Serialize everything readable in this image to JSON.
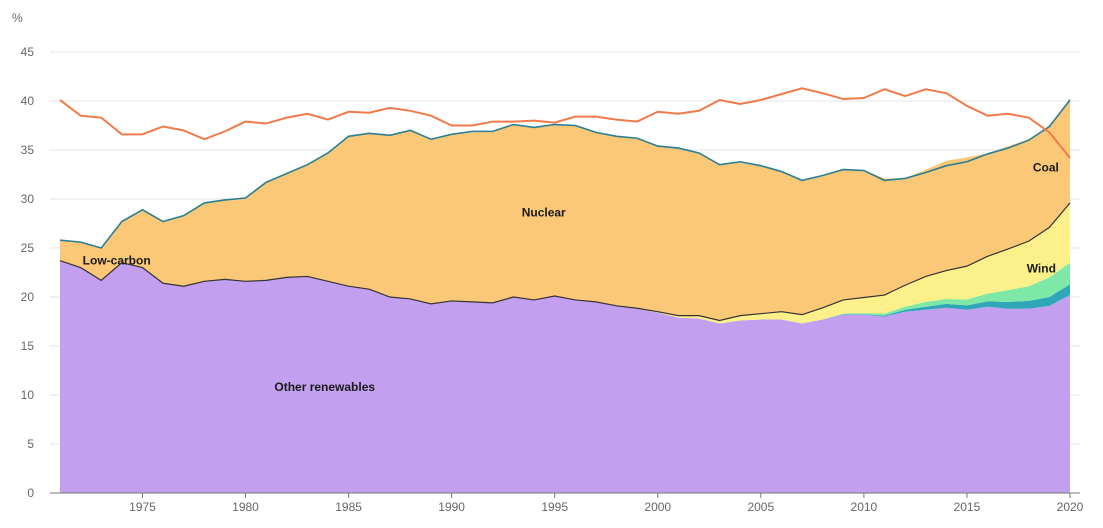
{
  "chart_data": {
    "type": "area",
    "y_unit": "%",
    "ylim": [
      0,
      45
    ],
    "y_ticks": [
      0,
      5,
      10,
      15,
      20,
      25,
      30,
      35,
      40,
      45
    ],
    "x_ticks": [
      1975,
      1980,
      1985,
      1990,
      1995,
      2000,
      2005,
      2010,
      2015,
      2020
    ],
    "xlim": [
      1971,
      2020
    ],
    "grid": true,
    "x": [
      1971,
      1972,
      1973,
      1974,
      1975,
      1976,
      1977,
      1978,
      1979,
      1980,
      1981,
      1982,
      1983,
      1984,
      1985,
      1986,
      1987,
      1988,
      1989,
      1990,
      1991,
      1992,
      1993,
      1994,
      1995,
      1996,
      1997,
      1998,
      1999,
      2000,
      2001,
      2002,
      2003,
      2004,
      2005,
      2006,
      2007,
      2008,
      2009,
      2010,
      2011,
      2012,
      2013,
      2014,
      2015,
      2016,
      2017,
      2018,
      2019,
      2020
    ],
    "series": [
      {
        "key": "other_renewables",
        "color": "#c39ff0",
        "values": [
          23.7,
          23.0,
          21.7,
          23.5,
          23.0,
          21.4,
          21.1,
          21.6,
          21.8,
          21.6,
          21.7,
          22.0,
          22.1,
          21.6,
          21.1,
          20.8,
          20.0,
          19.8,
          19.3,
          19.6,
          19.5,
          19.4,
          20.0,
          19.7,
          20.1,
          19.7,
          19.5,
          19.1,
          18.8,
          18.4,
          17.9,
          17.8,
          17.3,
          17.6,
          17.7,
          17.7,
          17.3,
          17.7,
          18.2,
          18.2,
          18.0,
          18.5,
          18.7,
          18.9,
          18.7,
          19.0,
          18.8,
          18.8,
          19.1,
          20.2
        ]
      },
      {
        "key": "solar",
        "color": "#2fa7b8",
        "values": [
          0,
          0,
          0,
          0,
          0,
          0,
          0,
          0,
          0,
          0,
          0,
          0,
          0,
          0,
          0,
          0,
          0,
          0,
          0,
          0,
          0,
          0,
          0,
          0,
          0,
          0,
          0,
          0,
          0,
          0,
          0,
          0,
          0,
          0,
          0,
          0,
          0,
          0,
          0.05,
          0.05,
          0.1,
          0.2,
          0.3,
          0.4,
          0.45,
          0.55,
          0.7,
          0.8,
          0.9,
          1.1
        ]
      },
      {
        "key": "wind_green",
        "color": "#7ee8a6",
        "values": [
          0,
          0,
          0,
          0,
          0,
          0,
          0,
          0,
          0,
          0,
          0,
          0,
          0,
          0,
          0,
          0,
          0,
          0,
          0,
          0,
          0,
          0,
          0,
          0,
          0,
          0,
          0,
          0,
          0,
          0,
          0,
          0,
          0,
          0,
          0,
          0,
          0,
          0,
          0.05,
          0.1,
          0.2,
          0.3,
          0.5,
          0.5,
          0.6,
          0.8,
          1.2,
          1.5,
          2.0,
          2.2
        ]
      },
      {
        "key": "wind",
        "color": "#fbf08a",
        "values": [
          0,
          0,
          0,
          0,
          0,
          0,
          0,
          0,
          0,
          0,
          0,
          0,
          0,
          0,
          0,
          0,
          0,
          0,
          0,
          0,
          0,
          0,
          0,
          0,
          0,
          0,
          0,
          0,
          0.05,
          0.1,
          0.2,
          0.3,
          0.3,
          0.5,
          0.6,
          0.8,
          0.9,
          1.2,
          1.4,
          1.6,
          1.9,
          2.2,
          2.6,
          2.9,
          3.4,
          3.8,
          4.2,
          4.6,
          5.1,
          6.1
        ]
      },
      {
        "key": "nuclear",
        "color": "#fbc878",
        "values": [
          2.1,
          2.6,
          3.3,
          4.2,
          5.9,
          6.3,
          7.2,
          8.0,
          8.1,
          8.5,
          10.0,
          10.6,
          11.4,
          13.1,
          15.3,
          15.9,
          16.5,
          17.2,
          16.8,
          17.0,
          17.4,
          17.5,
          17.6,
          17.6,
          17.5,
          17.8,
          17.3,
          17.3,
          17.4,
          16.9,
          17.1,
          16.6,
          15.9,
          15.7,
          15.1,
          14.3,
          13.7,
          13.5,
          13.4,
          13.0,
          11.9,
          10.9,
          10.9,
          11.2,
          11.1,
          10.5,
          10.5,
          10.4,
          10.3,
          10.7
        ]
      }
    ],
    "total_line": {
      "color": "#2a7f95",
      "values": [
        25.8,
        25.6,
        25.0,
        27.7,
        28.9,
        27.7,
        28.3,
        29.6,
        29.9,
        30.1,
        31.7,
        32.6,
        33.5,
        34.7,
        36.4,
        36.7,
        36.5,
        37.0,
        36.1,
        36.6,
        36.9,
        36.9,
        37.6,
        37.3,
        37.6,
        37.5,
        36.8,
        36.4,
        36.2,
        35.4,
        35.2,
        34.7,
        33.5,
        33.8,
        33.4,
        32.8,
        31.9,
        32.4,
        33.0,
        32.9,
        31.9,
        32.1,
        32.7,
        33.4,
        33.8,
        34.6,
        35.2,
        36.0,
        37.4,
        40.1
      ]
    },
    "low_carbon_line": {
      "color": "#333333",
      "values": [
        23.7,
        23.0,
        21.7,
        23.5,
        23.0,
        21.4,
        21.1,
        21.6,
        21.8,
        21.6,
        21.7,
        22.0,
        22.1,
        21.6,
        21.1,
        20.8,
        20.0,
        19.8,
        19.3,
        19.6,
        19.5,
        19.4,
        20.0,
        19.7,
        20.1,
        19.7,
        19.5,
        19.1,
        18.85,
        18.5,
        18.1,
        18.1,
        17.6,
        18.1,
        18.3,
        18.5,
        18.2,
        18.9,
        19.7,
        19.95,
        20.2,
        21.2,
        22.1,
        22.7,
        23.15,
        24.15,
        24.9,
        25.7,
        27.1,
        29.6
      ]
    },
    "coal": {
      "color": "#f07a4a",
      "values": [
        40.1,
        38.5,
        38.3,
        36.6,
        36.6,
        37.4,
        37.0,
        36.1,
        36.9,
        37.9,
        37.7,
        38.3,
        38.7,
        38.1,
        38.9,
        38.8,
        39.3,
        39.0,
        38.5,
        37.5,
        37.5,
        37.9,
        37.9,
        38.0,
        37.8,
        38.4,
        38.4,
        38.1,
        37.9,
        38.9,
        38.7,
        39.0,
        40.1,
        39.7,
        40.1,
        40.7,
        41.3,
        40.8,
        40.2,
        40.3,
        41.2,
        40.5,
        41.2,
        40.8,
        39.5,
        38.5,
        38.7,
        38.3,
        36.8,
        34.2
      ]
    },
    "annotations": [
      {
        "text": "Low-carbon",
        "x": 1972.1,
        "y": 23.3
      },
      {
        "text": "Nuclear",
        "x": 1993.4,
        "y": 28.2
      },
      {
        "text": "Other renewables",
        "x": 1981.4,
        "y": 10.4
      },
      {
        "text": "Wind",
        "x": 2017.9,
        "y": 22.5
      },
      {
        "text": "Coal",
        "x": 2018.2,
        "y": 32.8
      }
    ],
    "grid_color": "#e6e6e6",
    "axis_color": "#777777"
  }
}
